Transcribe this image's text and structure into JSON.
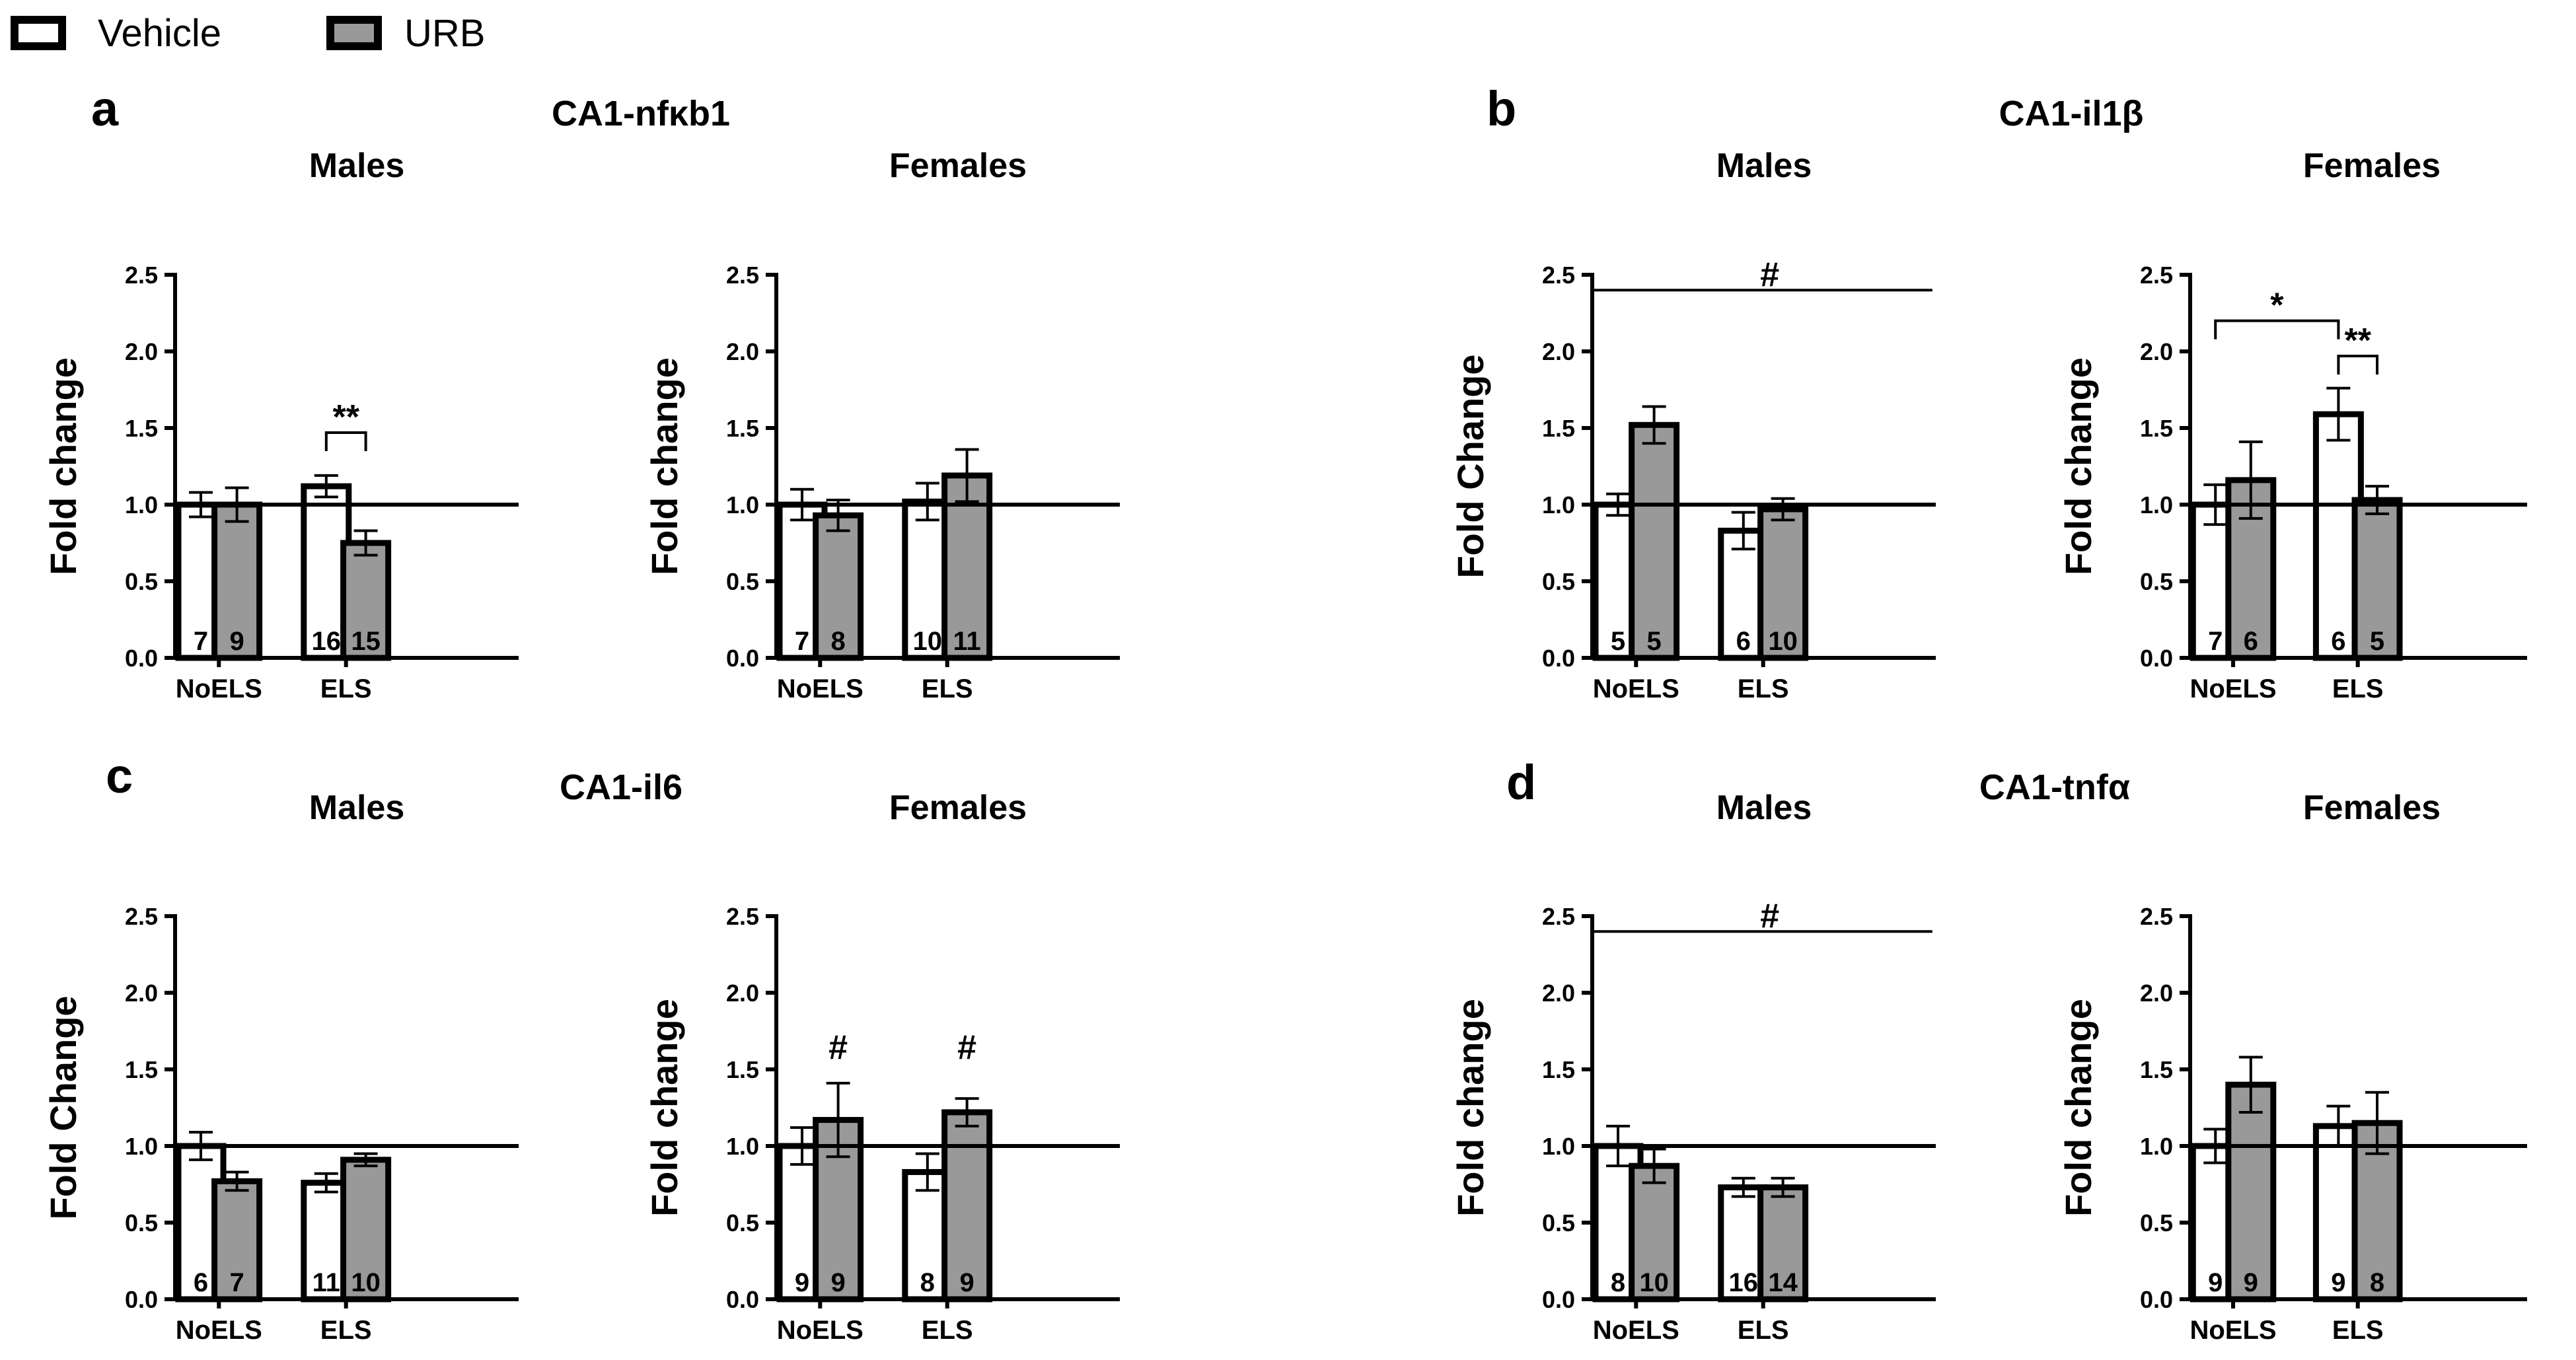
{
  "legend": [
    {
      "label": "Vehicle",
      "color": "#ffffff"
    },
    {
      "label": "URB",
      "color": "#999999"
    }
  ],
  "colors": {
    "vehicle": "#ffffff",
    "urb": "#999999",
    "stroke": "#000000"
  },
  "chart_data": [
    {
      "panel": "a",
      "title": "CA1-nfκb1",
      "subtitle": "Males",
      "type": "bar",
      "ylabel": "Fold change",
      "ylim": [
        0,
        2.5
      ],
      "yticks": [
        "0.0",
        "0.5",
        "1.0",
        "1.5",
        "2.0",
        "2.5"
      ],
      "reference_line": 1.0,
      "categories": [
        "NoELS",
        "ELS"
      ],
      "series": [
        {
          "name": "Vehicle",
          "values": [
            1.0,
            1.12
          ],
          "errors": [
            0.08,
            0.07
          ],
          "n": [
            "7",
            "16"
          ]
        },
        {
          "name": "URB",
          "values": [
            1.0,
            0.75
          ],
          "errors": [
            0.11,
            0.08
          ],
          "n": [
            "9",
            "15"
          ]
        }
      ],
      "annotations": [
        {
          "type": "bracket",
          "from": [
            1,
            0
          ],
          "to": [
            1,
            1
          ],
          "y": 1.47,
          "label": "**"
        }
      ]
    },
    {
      "panel": "",
      "title": "",
      "subtitle": "Females",
      "type": "bar",
      "ylabel": "Fold change",
      "ylim": [
        0,
        2.5
      ],
      "yticks": [
        "0.0",
        "0.5",
        "1.0",
        "1.5",
        "2.0",
        "2.5"
      ],
      "reference_line": 1.0,
      "categories": [
        "NoELS",
        "ELS"
      ],
      "series": [
        {
          "name": "Vehicle",
          "values": [
            1.0,
            1.02
          ],
          "errors": [
            0.1,
            0.12
          ],
          "n": [
            "7",
            "10"
          ]
        },
        {
          "name": "URB",
          "values": [
            0.93,
            1.19
          ],
          "errors": [
            0.1,
            0.17
          ],
          "n": [
            "8",
            "11"
          ]
        }
      ],
      "annotations": []
    },
    {
      "panel": "b",
      "title": "CA1-il1β",
      "subtitle": "Males",
      "type": "bar",
      "ylabel": "Fold  Change",
      "ylim": [
        0,
        2.5
      ],
      "yticks": [
        "0.0",
        "0.5",
        "1.0",
        "1.5",
        "2.0",
        "2.5"
      ],
      "reference_line": 1.0,
      "categories": [
        "NoELS",
        "ELS"
      ],
      "series": [
        {
          "name": "Vehicle",
          "values": [
            1.0,
            0.83
          ],
          "errors": [
            0.07,
            0.12
          ],
          "n": [
            "5",
            "6"
          ]
        },
        {
          "name": "URB",
          "values": [
            1.52,
            0.97
          ],
          "errors": [
            0.12,
            0.07
          ],
          "n": [
            "5",
            "10"
          ]
        }
      ],
      "annotations": [
        {
          "type": "line",
          "from": [
            0,
            0
          ],
          "to": [
            1,
            1
          ],
          "y": 2.4,
          "label": "#"
        }
      ]
    },
    {
      "panel": "",
      "title": "",
      "subtitle": "Females",
      "type": "bar",
      "ylabel": "Fold change",
      "ylim": [
        0,
        2.5
      ],
      "yticks": [
        "0.0",
        "0.5",
        "1.0",
        "1.5",
        "2.0",
        "2.5"
      ],
      "reference_line": 1.0,
      "categories": [
        "NoELS",
        "ELS"
      ],
      "series": [
        {
          "name": "Vehicle",
          "values": [
            1.0,
            1.59
          ],
          "errors": [
            0.13,
            0.17
          ],
          "n": [
            "7",
            "6"
          ]
        },
        {
          "name": "URB",
          "values": [
            1.16,
            1.03
          ],
          "errors": [
            0.25,
            0.09
          ],
          "n": [
            "6",
            "5"
          ]
        }
      ],
      "annotations": [
        {
          "type": "bracket",
          "from": [
            0,
            0
          ],
          "to": [
            1,
            0
          ],
          "y": 2.2,
          "label": "*"
        },
        {
          "type": "bracket",
          "from": [
            1,
            0
          ],
          "to": [
            1,
            1
          ],
          "y": 1.97,
          "label": "**"
        }
      ]
    },
    {
      "panel": "c",
      "title": "CA1-il6",
      "subtitle": "Males",
      "type": "bar",
      "ylabel": "Fold  Change",
      "ylim": [
        0,
        2.5
      ],
      "yticks": [
        "0.0",
        "0.5",
        "1.0",
        "1.5",
        "2.0",
        "2.5"
      ],
      "reference_line": 1.0,
      "categories": [
        "NoELS",
        "ELS"
      ],
      "series": [
        {
          "name": "Vehicle",
          "values": [
            1.0,
            0.76
          ],
          "errors": [
            0.09,
            0.06
          ],
          "n": [
            "6",
            "11"
          ]
        },
        {
          "name": "URB",
          "values": [
            0.77,
            0.91
          ],
          "errors": [
            0.06,
            0.04
          ],
          "n": [
            "7",
            "10"
          ]
        }
      ],
      "annotations": []
    },
    {
      "panel": "",
      "title": "",
      "subtitle": "Females",
      "type": "bar",
      "ylabel": "Fold change",
      "ylim": [
        0,
        2.5
      ],
      "yticks": [
        "0.0",
        "0.5",
        "1.0",
        "1.5",
        "2.0",
        "2.5"
      ],
      "reference_line": 1.0,
      "categories": [
        "NoELS",
        "ELS"
      ],
      "series": [
        {
          "name": "Vehicle",
          "values": [
            1.0,
            0.83
          ],
          "errors": [
            0.12,
            0.12
          ],
          "n": [
            "9",
            "8"
          ]
        },
        {
          "name": "URB",
          "values": [
            1.17,
            1.22
          ],
          "errors": [
            0.24,
            0.09
          ],
          "n": [
            "9",
            "9"
          ]
        }
      ],
      "annotations": [
        {
          "type": "mark",
          "at": [
            0,
            1
          ],
          "y": 1.57,
          "label": "#"
        },
        {
          "type": "mark",
          "at": [
            1,
            1
          ],
          "y": 1.57,
          "label": "#"
        }
      ]
    },
    {
      "panel": "d",
      "title": "CA1-tnfα",
      "subtitle": "Males",
      "type": "bar",
      "ylabel": "Fold change",
      "ylim": [
        0,
        2.5
      ],
      "yticks": [
        "0.0",
        "0.5",
        "1.0",
        "1.5",
        "2.0",
        "2.5"
      ],
      "reference_line": 1.0,
      "categories": [
        "NoELS",
        "ELS"
      ],
      "series": [
        {
          "name": "Vehicle",
          "values": [
            1.0,
            0.73
          ],
          "errors": [
            0.13,
            0.06
          ],
          "n": [
            "8",
            "16"
          ]
        },
        {
          "name": "URB",
          "values": [
            0.87,
            0.73
          ],
          "errors": [
            0.11,
            0.06
          ],
          "n": [
            "10",
            "14"
          ]
        }
      ],
      "annotations": [
        {
          "type": "line",
          "from": [
            0,
            0
          ],
          "to": [
            1,
            1
          ],
          "y": 2.4,
          "label": "#"
        }
      ]
    },
    {
      "panel": "",
      "title": "",
      "subtitle": "Females",
      "type": "bar",
      "ylabel": "Fold change",
      "ylim": [
        0,
        2.5
      ],
      "yticks": [
        "0.0",
        "0.5",
        "1.0",
        "1.5",
        "2.0",
        "2.5"
      ],
      "reference_line": 1.0,
      "categories": [
        "NoELS",
        "ELS"
      ],
      "series": [
        {
          "name": "Vehicle",
          "values": [
            1.0,
            1.13
          ],
          "errors": [
            0.11,
            0.13
          ],
          "n": [
            "9",
            "9"
          ]
        },
        {
          "name": "URB",
          "values": [
            1.4,
            1.15
          ],
          "errors": [
            0.18,
            0.2
          ],
          "n": [
            "9",
            "8"
          ]
        }
      ],
      "annotations": []
    }
  ]
}
